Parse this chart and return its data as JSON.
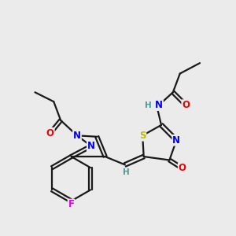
{
  "background_color": "#ebebeb",
  "bond_color": "#1a1a1a",
  "bond_width": 1.6,
  "atom_colors": {
    "N": "#0000ee",
    "O": "#ee0000",
    "S": "#bbbb00",
    "F": "#dd00dd",
    "H_label": "#4a9a9a",
    "C": "#1a1a1a"
  },
  "font_size_atom": 8.5,
  "font_size_h": 7.5
}
